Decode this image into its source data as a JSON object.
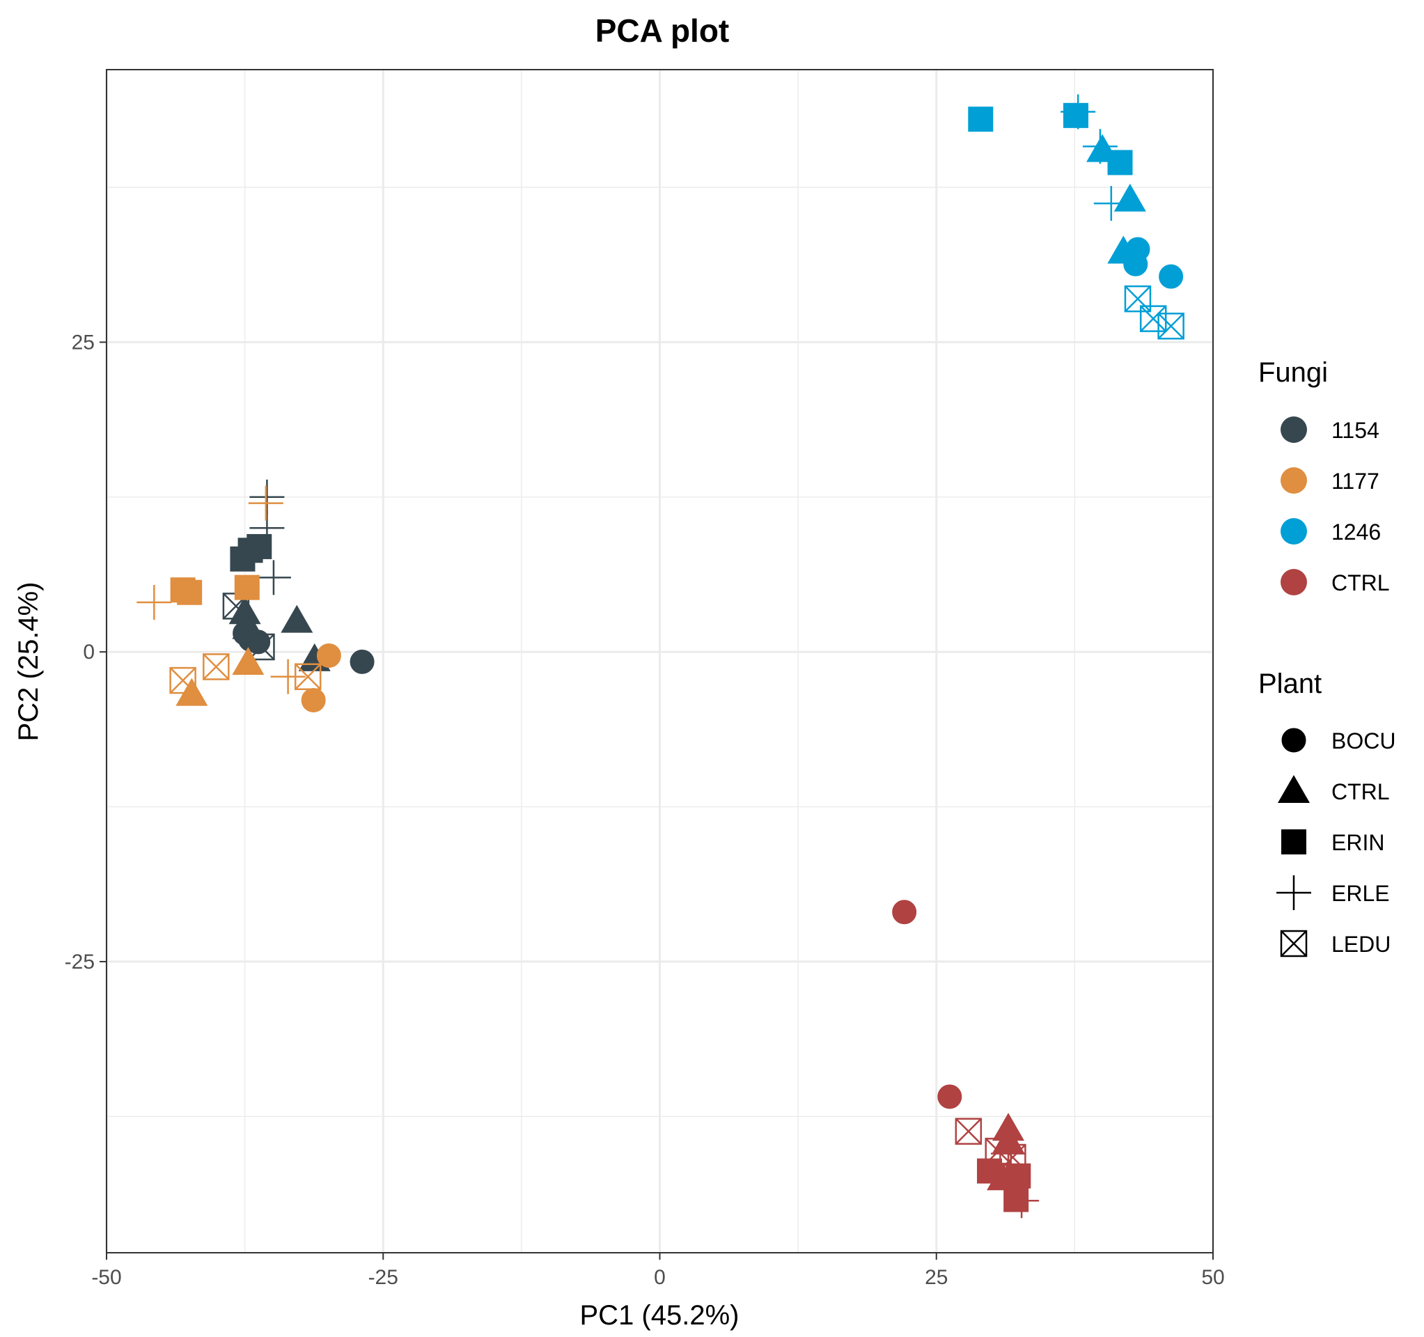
{
  "chart_data": {
    "type": "scatter",
    "title": "PCA plot",
    "xlabel": "PC1 (45.2%)",
    "ylabel": "PC2 (25.4%)",
    "xlim": [
      -50,
      50
    ],
    "ylim": [
      -48.5,
      47
    ],
    "x_ticks": [
      -50,
      -25,
      0,
      25,
      50
    ],
    "x_tick_labels": [
      "-50",
      "-25",
      "0",
      "25",
      "50"
    ],
    "y_ticks": [
      -25,
      0,
      25
    ],
    "y_tick_labels": [
      "-25",
      "0",
      "25"
    ],
    "grid": true,
    "legend_position": "right",
    "legend": {
      "color_title": "Fungi",
      "color_entries": [
        {
          "label": "1154",
          "color": "#36474f"
        },
        {
          "label": "1177",
          "color": "#e08e3f"
        },
        {
          "label": "1246",
          "color": "#009fd6"
        },
        {
          "label": "CTRL",
          "color": "#b04242"
        }
      ],
      "shape_title": "Plant",
      "shape_entries": [
        {
          "label": "BOCU",
          "shape": "circle"
        },
        {
          "label": "CTRL",
          "shape": "triangle"
        },
        {
          "label": "ERIN",
          "shape": "square"
        },
        {
          "label": "ERLE",
          "shape": "plus"
        },
        {
          "label": "LEDU",
          "shape": "boxed-x"
        }
      ]
    },
    "points": [
      {
        "fungi": "1154",
        "plant": "BOCU",
        "x": -37.5,
        "y": 1.5
      },
      {
        "fungi": "1154",
        "plant": "BOCU",
        "x": -37.0,
        "y": 1.0
      },
      {
        "fungi": "1154",
        "plant": "BOCU",
        "x": -36.3,
        "y": 0.8
      },
      {
        "fungi": "1154",
        "plant": "BOCU",
        "x": -26.9,
        "y": -0.8
      },
      {
        "fungi": "1154",
        "plant": "CTRL",
        "x": -37.5,
        "y": 3.2
      },
      {
        "fungi": "1154",
        "plant": "CTRL",
        "x": -37.2,
        "y": 2.0
      },
      {
        "fungi": "1154",
        "plant": "CTRL",
        "x": -32.8,
        "y": 2.5
      },
      {
        "fungi": "1154",
        "plant": "CTRL",
        "x": -31.2,
        "y": -0.6
      },
      {
        "fungi": "1154",
        "plant": "ERIN",
        "x": -37.7,
        "y": 7.5
      },
      {
        "fungi": "1154",
        "plant": "ERIN",
        "x": -37.0,
        "y": 8.2
      },
      {
        "fungi": "1154",
        "plant": "ERIN",
        "x": -36.2,
        "y": 8.5
      },
      {
        "fungi": "1154",
        "plant": "ERLE",
        "x": -35.5,
        "y": 12.5
      },
      {
        "fungi": "1154",
        "plant": "ERLE",
        "x": -35.5,
        "y": 10.0
      },
      {
        "fungi": "1154",
        "plant": "ERLE",
        "x": -34.9,
        "y": 6.0
      },
      {
        "fungi": "1154",
        "plant": "LEDU",
        "x": -38.3,
        "y": 3.7
      },
      {
        "fungi": "1154",
        "plant": "LEDU",
        "x": -36.0,
        "y": 0.4
      },
      {
        "fungi": "1177",
        "plant": "BOCU",
        "x": -29.9,
        "y": -0.3
      },
      {
        "fungi": "1177",
        "plant": "BOCU",
        "x": -31.3,
        "y": -3.9
      },
      {
        "fungi": "1177",
        "plant": "CTRL",
        "x": -42.3,
        "y": -3.4
      },
      {
        "fungi": "1177",
        "plant": "CTRL",
        "x": -37.2,
        "y": -0.9
      },
      {
        "fungi": "1177",
        "plant": "ERIN",
        "x": -43.1,
        "y": 5.0
      },
      {
        "fungi": "1177",
        "plant": "ERIN",
        "x": -42.5,
        "y": 4.8
      },
      {
        "fungi": "1177",
        "plant": "ERIN",
        "x": -37.3,
        "y": 5.2
      },
      {
        "fungi": "1177",
        "plant": "ERLE",
        "x": -45.7,
        "y": 4.0
      },
      {
        "fungi": "1177",
        "plant": "ERLE",
        "x": -35.6,
        "y": 12.0
      },
      {
        "fungi": "1177",
        "plant": "ERLE",
        "x": -33.6,
        "y": -2.0
      },
      {
        "fungi": "1177",
        "plant": "LEDU",
        "x": -43.1,
        "y": -2.3
      },
      {
        "fungi": "1177",
        "plant": "LEDU",
        "x": -40.1,
        "y": -1.2
      },
      {
        "fungi": "1177",
        "plant": "LEDU",
        "x": -31.8,
        "y": -2.0
      },
      {
        "fungi": "1246",
        "plant": "BOCU",
        "x": 43.2,
        "y": 32.5
      },
      {
        "fungi": "1246",
        "plant": "BOCU",
        "x": 43.0,
        "y": 31.3
      },
      {
        "fungi": "1246",
        "plant": "BOCU",
        "x": 46.2,
        "y": 30.3
      },
      {
        "fungi": "1246",
        "plant": "CTRL",
        "x": 40.0,
        "y": 40.5
      },
      {
        "fungi": "1246",
        "plant": "CTRL",
        "x": 42.5,
        "y": 36.5
      },
      {
        "fungi": "1246",
        "plant": "CTRL",
        "x": 41.9,
        "y": 32.3
      },
      {
        "fungi": "1246",
        "plant": "ERIN",
        "x": 29.0,
        "y": 43.0
      },
      {
        "fungi": "1246",
        "plant": "ERIN",
        "x": 37.6,
        "y": 43.3
      },
      {
        "fungi": "1246",
        "plant": "ERIN",
        "x": 41.6,
        "y": 39.5
      },
      {
        "fungi": "1246",
        "plant": "ERLE",
        "x": 37.8,
        "y": 43.6
      },
      {
        "fungi": "1246",
        "plant": "ERLE",
        "x": 39.8,
        "y": 40.8
      },
      {
        "fungi": "1246",
        "plant": "ERLE",
        "x": 40.8,
        "y": 36.2
      },
      {
        "fungi": "1246",
        "plant": "LEDU",
        "x": 43.2,
        "y": 28.5
      },
      {
        "fungi": "1246",
        "plant": "LEDU",
        "x": 44.6,
        "y": 26.9
      },
      {
        "fungi": "1246",
        "plant": "LEDU",
        "x": 46.2,
        "y": 26.3
      },
      {
        "fungi": "CTRL",
        "plant": "BOCU",
        "x": 22.1,
        "y": -21.0
      },
      {
        "fungi": "CTRL",
        "plant": "BOCU",
        "x": 26.2,
        "y": -35.9
      },
      {
        "fungi": "CTRL",
        "plant": "CTRL",
        "x": 31.5,
        "y": -38.5
      },
      {
        "fungi": "CTRL",
        "plant": "CTRL",
        "x": 31.5,
        "y": -39.5
      },
      {
        "fungi": "CTRL",
        "plant": "CTRL",
        "x": 31.0,
        "y": -42.5
      },
      {
        "fungi": "CTRL",
        "plant": "ERIN",
        "x": 29.8,
        "y": -41.9
      },
      {
        "fungi": "CTRL",
        "plant": "ERIN",
        "x": 32.4,
        "y": -42.3
      },
      {
        "fungi": "CTRL",
        "plant": "ERIN",
        "x": 32.2,
        "y": -44.2
      },
      {
        "fungi": "CTRL",
        "plant": "ERLE",
        "x": 31.5,
        "y": -40.5
      },
      {
        "fungi": "CTRL",
        "plant": "ERLE",
        "x": 32.7,
        "y": -44.3
      },
      {
        "fungi": "CTRL",
        "plant": "LEDU",
        "x": 27.9,
        "y": -38.7
      },
      {
        "fungi": "CTRL",
        "plant": "LEDU",
        "x": 30.6,
        "y": -40.3
      },
      {
        "fungi": "CTRL",
        "plant": "LEDU",
        "x": 31.9,
        "y": -40.8
      }
    ]
  }
}
